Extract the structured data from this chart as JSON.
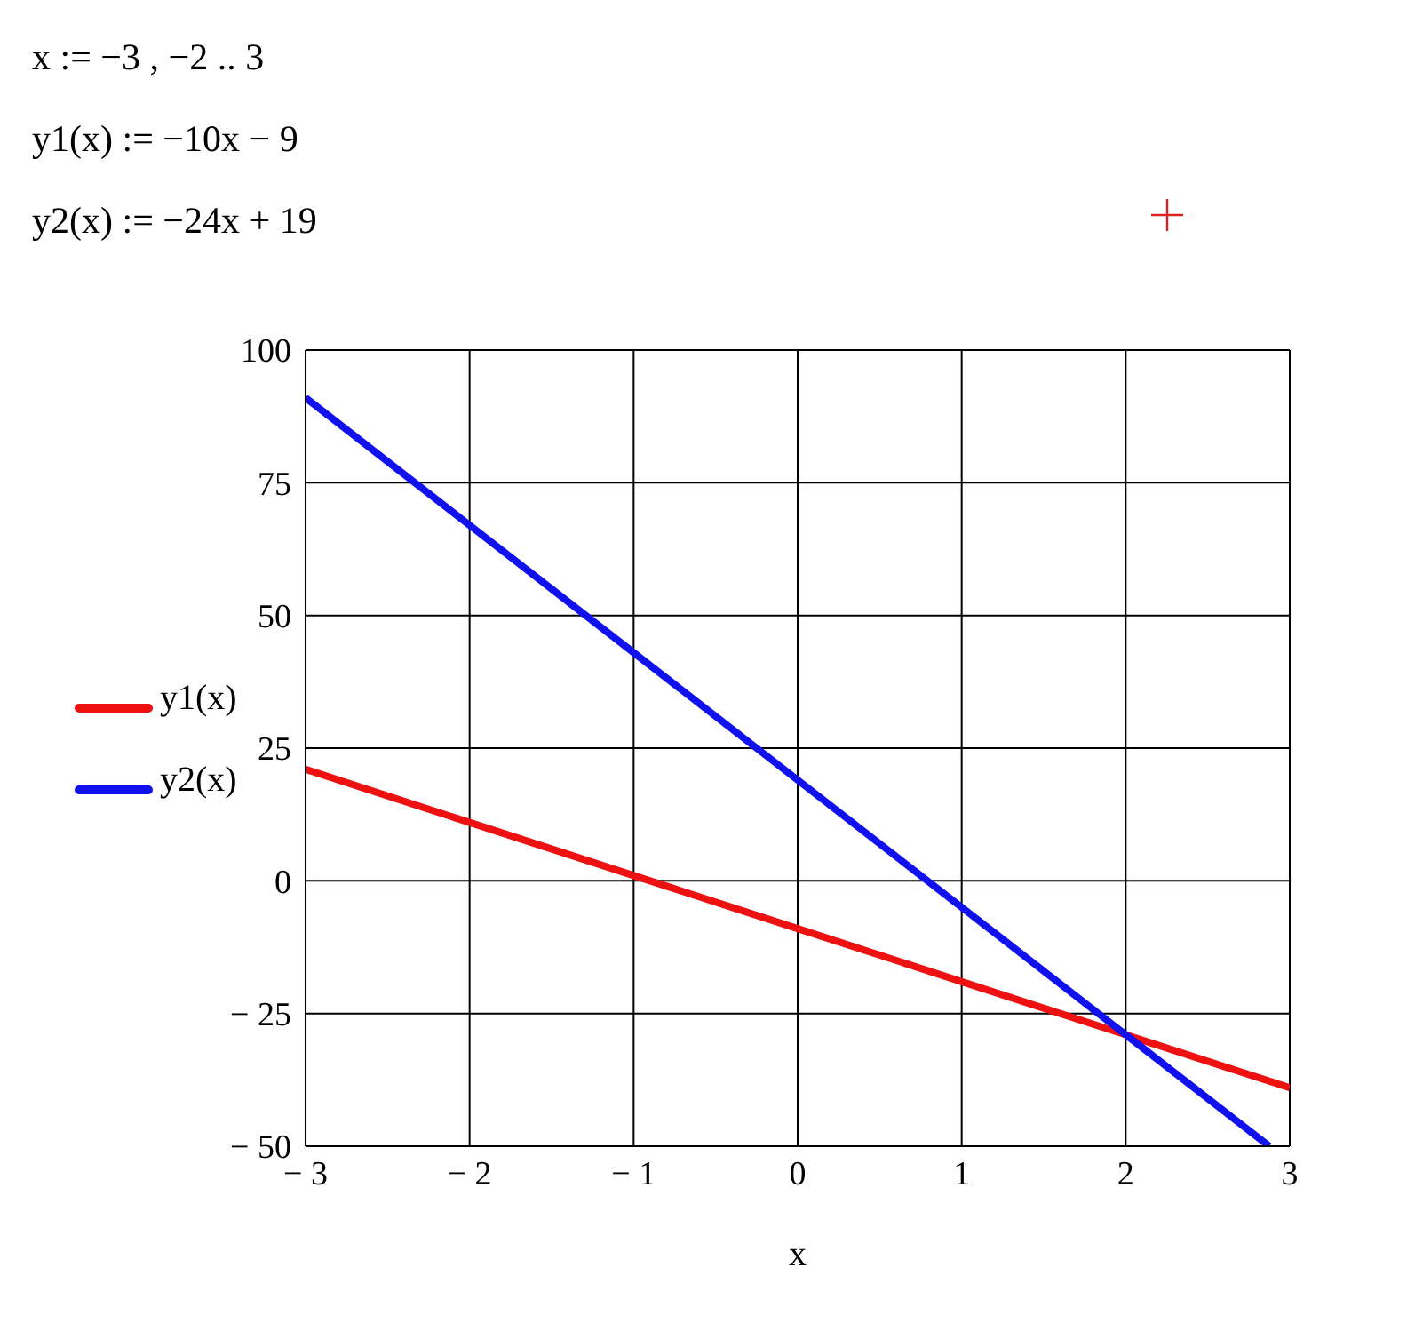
{
  "chart_data": {
    "type": "line",
    "annotations": [
      "x := −3 , −2 .. 3",
      "y1(x) := −10x − 9",
      "y2(x) := −24x + 19"
    ],
    "xlabel": "x",
    "x": [
      -3,
      -2,
      -1,
      0,
      1,
      2,
      3
    ],
    "series": [
      {
        "name": "y1(x)",
        "color": "#ee1111",
        "values": [
          21,
          11,
          1,
          -9,
          -19,
          -29,
          -39
        ]
      },
      {
        "name": "y2(x)",
        "color": "#1111ee",
        "x": [
          -3,
          -2,
          -1,
          0,
          1,
          2,
          2.875
        ],
        "values": [
          91,
          67,
          43,
          19,
          -5,
          -29,
          -50
        ]
      }
    ],
    "xlim": [
      -3,
      3
    ],
    "ylim": [
      -50,
      100
    ],
    "xticks": [
      {
        "value": -3,
        "label": "− 3"
      },
      {
        "value": -2,
        "label": "− 2"
      },
      {
        "value": -1,
        "label": "− 1"
      },
      0,
      1,
      2,
      3
    ],
    "yticks": [
      {
        "value": -50,
        "label": "− 50"
      },
      {
        "value": -25,
        "label": "− 25"
      },
      0,
      25,
      50,
      75,
      100
    ],
    "grid": true,
    "legend": "left",
    "marker": "none",
    "line_style": "solid"
  }
}
